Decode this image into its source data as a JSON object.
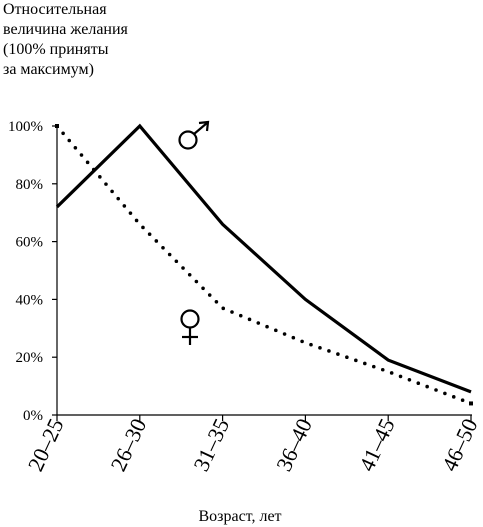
{
  "chart_data": {
    "type": "line",
    "title": "",
    "ylabel_lines": [
      "Относительная",
      "величина желания",
      "(100% приняты",
      "за максимум)"
    ],
    "xlabel": "Возраст, лет",
    "categories": [
      "20–25",
      "26–30",
      "31–35",
      "36–40",
      "41–45",
      "46–50"
    ],
    "y_ticks": [
      "0%",
      "20%",
      "40%",
      "60%",
      "80%",
      "100%"
    ],
    "ylim": [
      0,
      100
    ],
    "grid": false,
    "legend": "none",
    "series": [
      {
        "symbol": "♂",
        "line_style": "solid",
        "color": "#000000",
        "values": [
          72,
          100,
          66,
          40,
          19,
          8
        ]
      },
      {
        "symbol": "♀",
        "line_style": "dotted",
        "color": "#000000",
        "values": [
          100,
          66,
          37,
          25,
          15,
          4
        ]
      }
    ]
  }
}
